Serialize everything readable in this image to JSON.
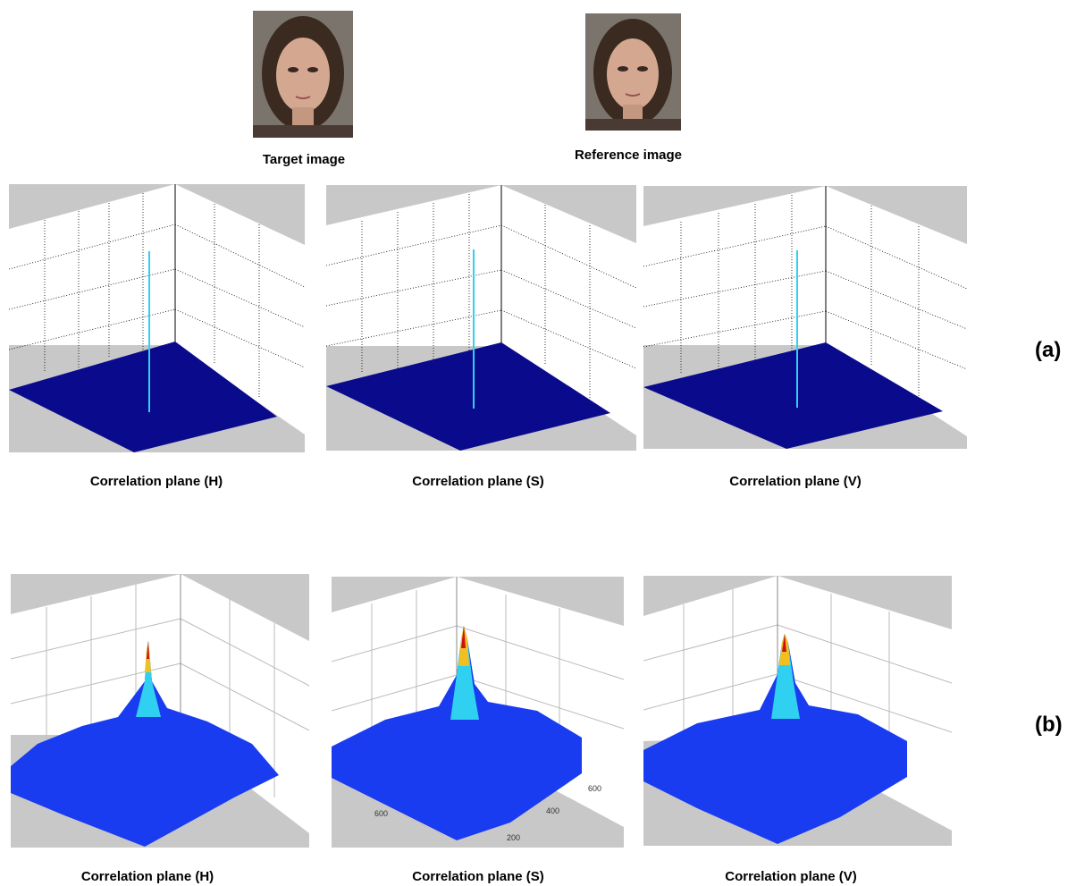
{
  "top": {
    "target_caption": "Target image",
    "reference_caption": "Reference image"
  },
  "row_a": {
    "label": "(a)",
    "captions": [
      "Correlation plane (H)",
      "Correlation plane (S)",
      "Correlation plane (V)"
    ]
  },
  "row_b": {
    "label": "(b)",
    "captions": [
      "Correlation plane (H)",
      "Correlation plane (S)",
      "Correlation plane (V)"
    ],
    "s_plot_ticks": [
      "600",
      "200",
      "400",
      "600"
    ]
  },
  "colors": {
    "plane_gray": "#c8c8c8",
    "surface_navy": "#0a0a8c",
    "peak_cyan": "#30d0f0",
    "surface_blue": "#1a3cf0",
    "peak_red": "#d01010"
  },
  "icons": {
    "face": "face-photo"
  }
}
